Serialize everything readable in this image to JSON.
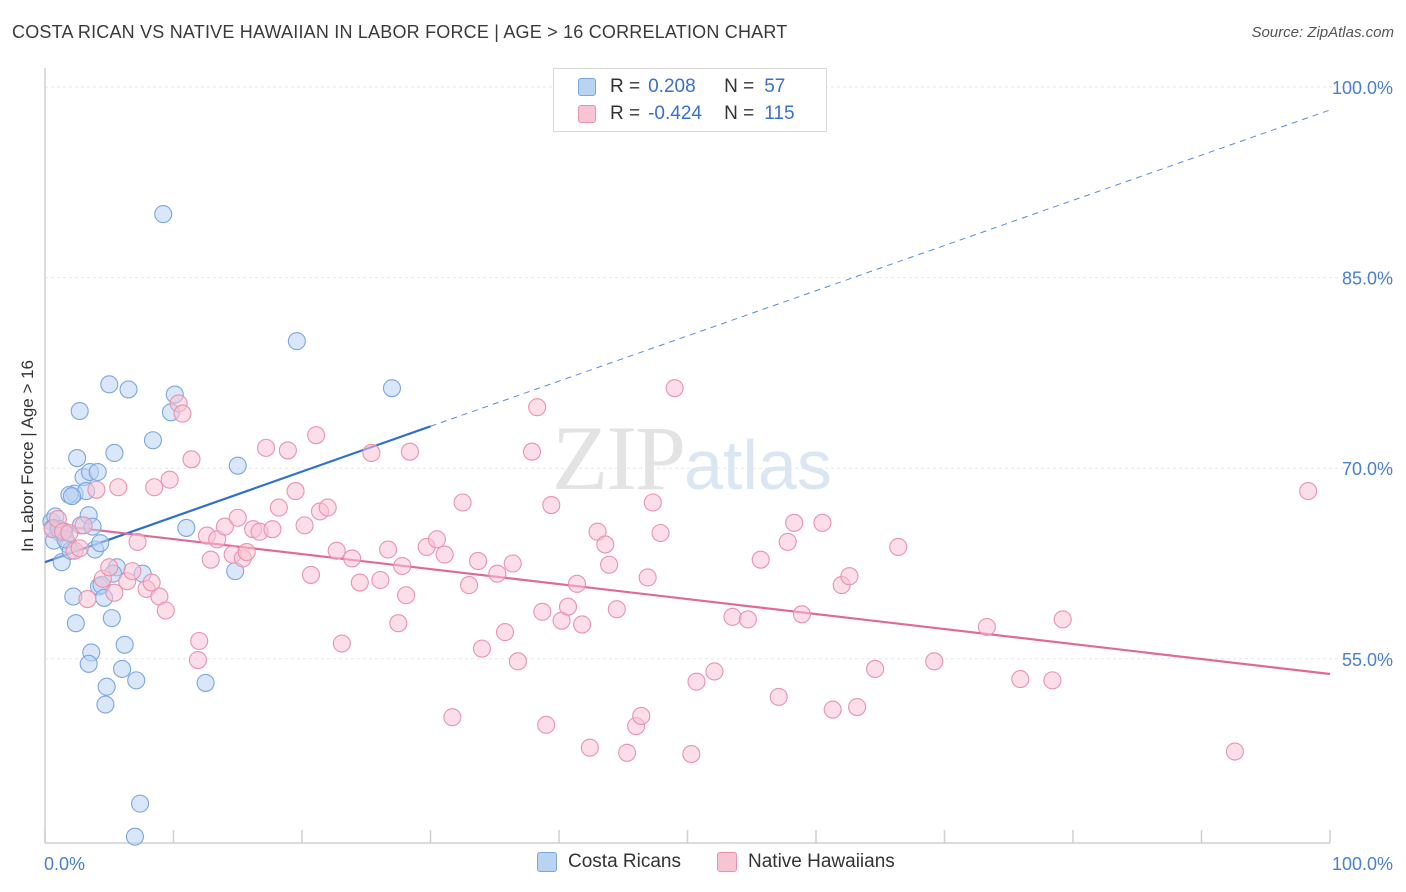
{
  "header": {
    "title": "COSTA RICAN VS NATIVE HAWAIIAN IN LABOR FORCE | AGE > 16 CORRELATION CHART",
    "source": "Source: ZipAtlas.com"
  },
  "watermark": {
    "zip": "ZIP",
    "atlas": "atlas"
  },
  "legend": {
    "rows": [
      {
        "r_label": "R =",
        "r_value": "0.208",
        "n_label": "N =",
        "n_value": "57",
        "color": "#b9d3f3",
        "border": "#7aa6e0"
      },
      {
        "r_label": "R =",
        "r_value": "-0.424",
        "n_label": "N =",
        "n_value": "115",
        "color": "#f8c3d3",
        "border": "#ea92ad"
      }
    ]
  },
  "bottom_legend": {
    "items": [
      {
        "label": "Costa Ricans",
        "color": "#b9d3f3",
        "border": "#7aa6e0"
      },
      {
        "label": "Native Hawaiians",
        "color": "#f8c3d3",
        "border": "#ea92ad"
      }
    ]
  },
  "chart_data": {
    "type": "scatter",
    "title": "COSTA RICAN VS NATIVE HAWAIIAN IN LABOR FORCE | AGE > 16 CORRELATION CHART",
    "xlabel": "",
    "ylabel": "In Labor Force | Age > 16",
    "xlim": [
      0,
      100
    ],
    "ylim": [
      40.5,
      101.5
    ],
    "x_tick_labels": [
      "0.0%",
      "100.0%"
    ],
    "y_ticks": [
      55,
      70,
      85,
      100
    ],
    "y_tick_labels": [
      "55.0%",
      "70.0%",
      "85.0%",
      "100.0%"
    ],
    "grid": true,
    "series": [
      {
        "name": "Costa Ricans",
        "color": "#7aa6e0",
        "fill": "#b9d3f3",
        "r": 0.208,
        "n": 57,
        "trend": {
          "x0": 0,
          "y0": 62.6,
          "x1": 30,
          "y1": 73.3,
          "dashed_to_x": 100,
          "dashed_to_y": 98.2,
          "color": "#2f6fd0"
        },
        "points": [
          [
            0.5,
            65.8
          ],
          [
            0.8,
            66.2
          ],
          [
            1.0,
            65.2
          ],
          [
            0.6,
            65.3
          ],
          [
            1.2,
            64.9
          ],
          [
            1.5,
            65.0
          ],
          [
            0.7,
            64.3
          ],
          [
            1.8,
            64.0
          ],
          [
            1.3,
            62.6
          ],
          [
            2.0,
            63.5
          ],
          [
            2.3,
            68.0
          ],
          [
            2.5,
            70.8
          ],
          [
            2.7,
            74.5
          ],
          [
            2.8,
            65.5
          ],
          [
            3.0,
            69.3
          ],
          [
            3.2,
            68.2
          ],
          [
            3.4,
            66.3
          ],
          [
            3.5,
            69.7
          ],
          [
            3.7,
            65.4
          ],
          [
            3.9,
            63.6
          ],
          [
            4.1,
            69.7
          ],
          [
            4.2,
            60.7
          ],
          [
            4.4,
            60.8
          ],
          [
            4.6,
            59.8
          ],
          [
            4.8,
            52.8
          ],
          [
            5.0,
            76.6
          ],
          [
            5.2,
            58.2
          ],
          [
            5.4,
            71.2
          ],
          [
            5.6,
            62.2
          ],
          [
            6.0,
            54.2
          ],
          [
            6.2,
            56.1
          ],
          [
            6.5,
            76.2
          ],
          [
            7.1,
            53.3
          ],
          [
            7.6,
            61.7
          ],
          [
            8.4,
            72.2
          ],
          [
            9.2,
            90.0
          ],
          [
            9.8,
            74.4
          ],
          [
            10.1,
            75.8
          ],
          [
            11.0,
            65.3
          ],
          [
            12.5,
            53.1
          ],
          [
            14.8,
            61.9
          ],
          [
            15.0,
            70.2
          ],
          [
            19.6,
            80.0
          ],
          [
            27.0,
            76.3
          ],
          [
            1.1,
            65.2
          ],
          [
            2.2,
            59.9
          ],
          [
            2.4,
            57.8
          ],
          [
            3.6,
            55.5
          ],
          [
            3.4,
            54.6
          ],
          [
            4.7,
            51.4
          ],
          [
            7.4,
            43.6
          ],
          [
            7.0,
            41.0
          ],
          [
            1.9,
            67.9
          ],
          [
            1.6,
            64.4
          ],
          [
            5.3,
            61.7
          ],
          [
            4.3,
            64.1
          ],
          [
            2.1,
            67.8
          ]
        ]
      },
      {
        "name": "Native Hawaiians",
        "color": "#ea92ad",
        "fill": "#f8c3d3",
        "r": -0.424,
        "n": 115,
        "trend": {
          "x0": 0,
          "y0": 65.6,
          "x1": 100,
          "y1": 53.8,
          "color": "#e06a94"
        },
        "points": [
          [
            0.6,
            65.2
          ],
          [
            1.0,
            66.0
          ],
          [
            1.4,
            65.0
          ],
          [
            1.9,
            64.9
          ],
          [
            2.3,
            63.5
          ],
          [
            3.0,
            65.5
          ],
          [
            3.3,
            59.7
          ],
          [
            4.0,
            68.3
          ],
          [
            4.5,
            61.3
          ],
          [
            5.4,
            60.2
          ],
          [
            5.7,
            68.5
          ],
          [
            6.4,
            61.1
          ],
          [
            6.8,
            61.9
          ],
          [
            7.2,
            64.2
          ],
          [
            7.9,
            60.5
          ],
          [
            8.5,
            68.5
          ],
          [
            8.9,
            59.9
          ],
          [
            9.4,
            58.8
          ],
          [
            9.7,
            69.1
          ],
          [
            10.4,
            75.1
          ],
          [
            10.7,
            74.3
          ],
          [
            11.4,
            70.7
          ],
          [
            12.0,
            56.4
          ],
          [
            12.6,
            64.7
          ],
          [
            12.9,
            62.8
          ],
          [
            13.4,
            64.4
          ],
          [
            14.0,
            65.4
          ],
          [
            14.6,
            63.2
          ],
          [
            15.0,
            66.1
          ],
          [
            15.4,
            62.9
          ],
          [
            15.7,
            63.4
          ],
          [
            16.2,
            65.2
          ],
          [
            16.7,
            65.0
          ],
          [
            17.2,
            71.6
          ],
          [
            17.7,
            65.2
          ],
          [
            18.2,
            66.9
          ],
          [
            18.9,
            71.4
          ],
          [
            19.5,
            68.2
          ],
          [
            20.7,
            61.6
          ],
          [
            21.1,
            72.6
          ],
          [
            21.4,
            66.6
          ],
          [
            22.0,
            66.9
          ],
          [
            22.7,
            63.5
          ],
          [
            23.1,
            56.2
          ],
          [
            23.9,
            62.9
          ],
          [
            24.5,
            61.0
          ],
          [
            25.4,
            71.2
          ],
          [
            26.1,
            61.2
          ],
          [
            26.7,
            63.6
          ],
          [
            27.8,
            62.3
          ],
          [
            28.1,
            60.0
          ],
          [
            28.4,
            71.3
          ],
          [
            29.7,
            63.8
          ],
          [
            30.5,
            64.4
          ],
          [
            31.1,
            63.2
          ],
          [
            31.7,
            50.4
          ],
          [
            32.5,
            67.3
          ],
          [
            33.0,
            60.8
          ],
          [
            33.7,
            62.7
          ],
          [
            34.0,
            55.8
          ],
          [
            35.2,
            61.7
          ],
          [
            35.8,
            57.1
          ],
          [
            36.4,
            62.5
          ],
          [
            36.8,
            54.8
          ],
          [
            37.9,
            71.3
          ],
          [
            38.3,
            74.8
          ],
          [
            38.7,
            58.7
          ],
          [
            39.0,
            49.8
          ],
          [
            39.4,
            67.1
          ],
          [
            40.2,
            58.0
          ],
          [
            40.7,
            59.1
          ],
          [
            41.4,
            60.9
          ],
          [
            41.8,
            57.7
          ],
          [
            42.4,
            48.0
          ],
          [
            43.0,
            65.0
          ],
          [
            43.6,
            64.0
          ],
          [
            43.9,
            62.4
          ],
          [
            44.5,
            58.9
          ],
          [
            45.3,
            47.6
          ],
          [
            46.0,
            49.7
          ],
          [
            46.4,
            50.5
          ],
          [
            46.9,
            61.4
          ],
          [
            47.3,
            67.3
          ],
          [
            47.9,
            64.9
          ],
          [
            49.0,
            76.3
          ],
          [
            50.3,
            47.5
          ],
          [
            50.7,
            53.2
          ],
          [
            52.1,
            54.0
          ],
          [
            53.5,
            58.3
          ],
          [
            54.7,
            58.1
          ],
          [
            55.7,
            62.8
          ],
          [
            57.1,
            52.0
          ],
          [
            57.8,
            64.2
          ],
          [
            58.3,
            65.7
          ],
          [
            58.9,
            58.5
          ],
          [
            60.5,
            65.7
          ],
          [
            61.3,
            51.0
          ],
          [
            62.0,
            60.8
          ],
          [
            62.6,
            61.5
          ],
          [
            63.2,
            51.2
          ],
          [
            64.6,
            54.2
          ],
          [
            66.4,
            63.8
          ],
          [
            69.2,
            54.8
          ],
          [
            73.3,
            57.5
          ],
          [
            75.9,
            53.4
          ],
          [
            78.4,
            53.3
          ],
          [
            79.2,
            58.1
          ],
          [
            92.6,
            47.7
          ],
          [
            98.3,
            68.2
          ],
          [
            2.7,
            63.7
          ],
          [
            5.0,
            62.2
          ],
          [
            8.3,
            61.0
          ],
          [
            11.9,
            54.9
          ],
          [
            20.2,
            65.5
          ],
          [
            27.5,
            57.8
          ]
        ]
      }
    ]
  }
}
